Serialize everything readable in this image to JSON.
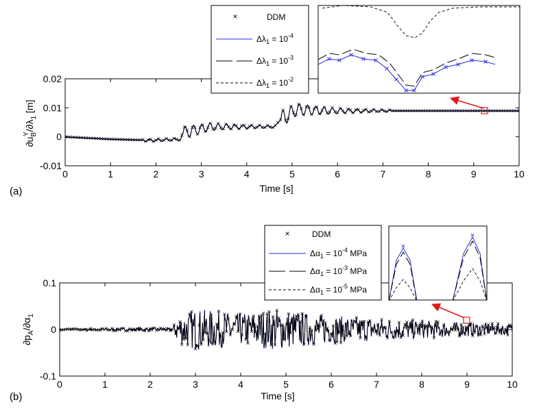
{
  "chart_data": [
    {
      "type": "line",
      "panel_label": "(a)",
      "xlabel": "Time [s]",
      "ylabel": "∂u_B^Y/∂λ_1 [m]",
      "xlim": [
        0,
        10
      ],
      "ylim": [
        -0.01,
        0.02
      ],
      "xticks": [
        "0",
        "1",
        "2",
        "3",
        "4",
        "5",
        "6",
        "7",
        "8",
        "9",
        "10"
      ],
      "yticks": [
        "-0.01",
        "0",
        "0.01",
        "0.02"
      ],
      "legend_position": "top-center",
      "legend": [
        {
          "label": "DDM",
          "style": "marker-x"
        },
        {
          "label": "Δλ_1 = 10^-4",
          "style": "solid-blue"
        },
        {
          "label": "Δλ_1 = 10^-3",
          "style": "long-dash-black"
        },
        {
          "label": "Δλ_1 = 10^-2",
          "style": "short-dash-black"
        }
      ],
      "series_envelope": {
        "x": [
          0,
          1,
          1.9,
          2.55,
          2.6,
          3.2,
          4.0,
          4.6,
          4.75,
          5.1,
          5.8,
          6.5,
          7.5,
          9.0,
          10
        ],
        "y": [
          0,
          -0.0008,
          -0.0012,
          -0.0008,
          0.0015,
          0.0035,
          0.0035,
          0.0035,
          0.006,
          0.0095,
          0.009,
          0.009,
          0.009,
          0.009,
          0.009
        ]
      },
      "zoom_box_at": [
        9.25,
        0.009
      ]
    },
    {
      "type": "line",
      "panel_label": "(b)",
      "xlabel": "Time [s]",
      "ylabel": "∂p_A/∂α_1",
      "xlim": [
        0,
        10
      ],
      "ylim": [
        -0.1,
        0.1
      ],
      "xticks": [
        "0",
        "1",
        "2",
        "3",
        "4",
        "5",
        "6",
        "7",
        "8",
        "9",
        "10"
      ],
      "yticks": [
        "-0.1",
        "0",
        "0.1"
      ],
      "legend_position": "top-right",
      "legend": [
        {
          "label": "DDM",
          "style": "marker-x"
        },
        {
          "label": "Δα_1 = 10^-4 MPa",
          "style": "solid-blue"
        },
        {
          "label": "Δα_1 = 10^-3 MPa",
          "style": "long-dash-black"
        },
        {
          "label": "Δα_1 = 10^-5 MPa",
          "style": "short-dash-black"
        }
      ],
      "amplitude_envelope": {
        "x": [
          0,
          2.5,
          2.6,
          3.0,
          4.0,
          4.8,
          5.2,
          6.0,
          7.0,
          8.0,
          9.0,
          10
        ],
        "amplitude": [
          0.002,
          0.004,
          0.03,
          0.045,
          0.035,
          0.045,
          0.04,
          0.03,
          0.025,
          0.02,
          0.015,
          0.012
        ]
      },
      "zoom_box_at": [
        9.0,
        0.015
      ]
    }
  ],
  "panels": {
    "a": {
      "label": "(a)",
      "xlabel": "Time [s]",
      "ylabel_main": "∂u",
      "ylabel_sup": "Y",
      "ylabel_sub": "B",
      "ylabel_rest": "/∂λ",
      "ylabel_sub2": "1",
      "ylabel_unit": " [m]",
      "legend": {
        "ddm": "DDM",
        "l1_base": "Δλ",
        "l1_sub": "1",
        "l1_eq": " = 10",
        "l1_exp": "-4",
        "l2_base": "Δλ",
        "l2_sub": "1",
        "l2_eq": " = 10",
        "l2_exp": "-3",
        "l3_base": "Δλ",
        "l3_sub": "1",
        "l3_eq": " = 10",
        "l3_exp": "-2"
      }
    },
    "b": {
      "label": "(b)",
      "xlabel": "Time [s]",
      "ylabel_main": "∂p",
      "ylabel_sub": "A",
      "ylabel_rest": "/∂α",
      "ylabel_sub2": "1",
      "legend": {
        "ddm": "DDM",
        "l1_base": "Δα",
        "l1_sub": "1",
        "l1_eq": " = 10",
        "l1_exp": "-4",
        "l1_unit": " MPa",
        "l2_base": "Δα",
        "l2_sub": "1",
        "l2_eq": " = 10",
        "l2_exp": "-3",
        "l2_unit": " MPa",
        "l3_base": "Δα",
        "l3_sub": "1",
        "l3_eq": " = 10",
        "l3_exp": "-5",
        "l3_unit": " MPa"
      }
    }
  },
  "colors": {
    "blue": "#2a2ae0",
    "black": "#000000",
    "arrow": "#e01a1a"
  }
}
